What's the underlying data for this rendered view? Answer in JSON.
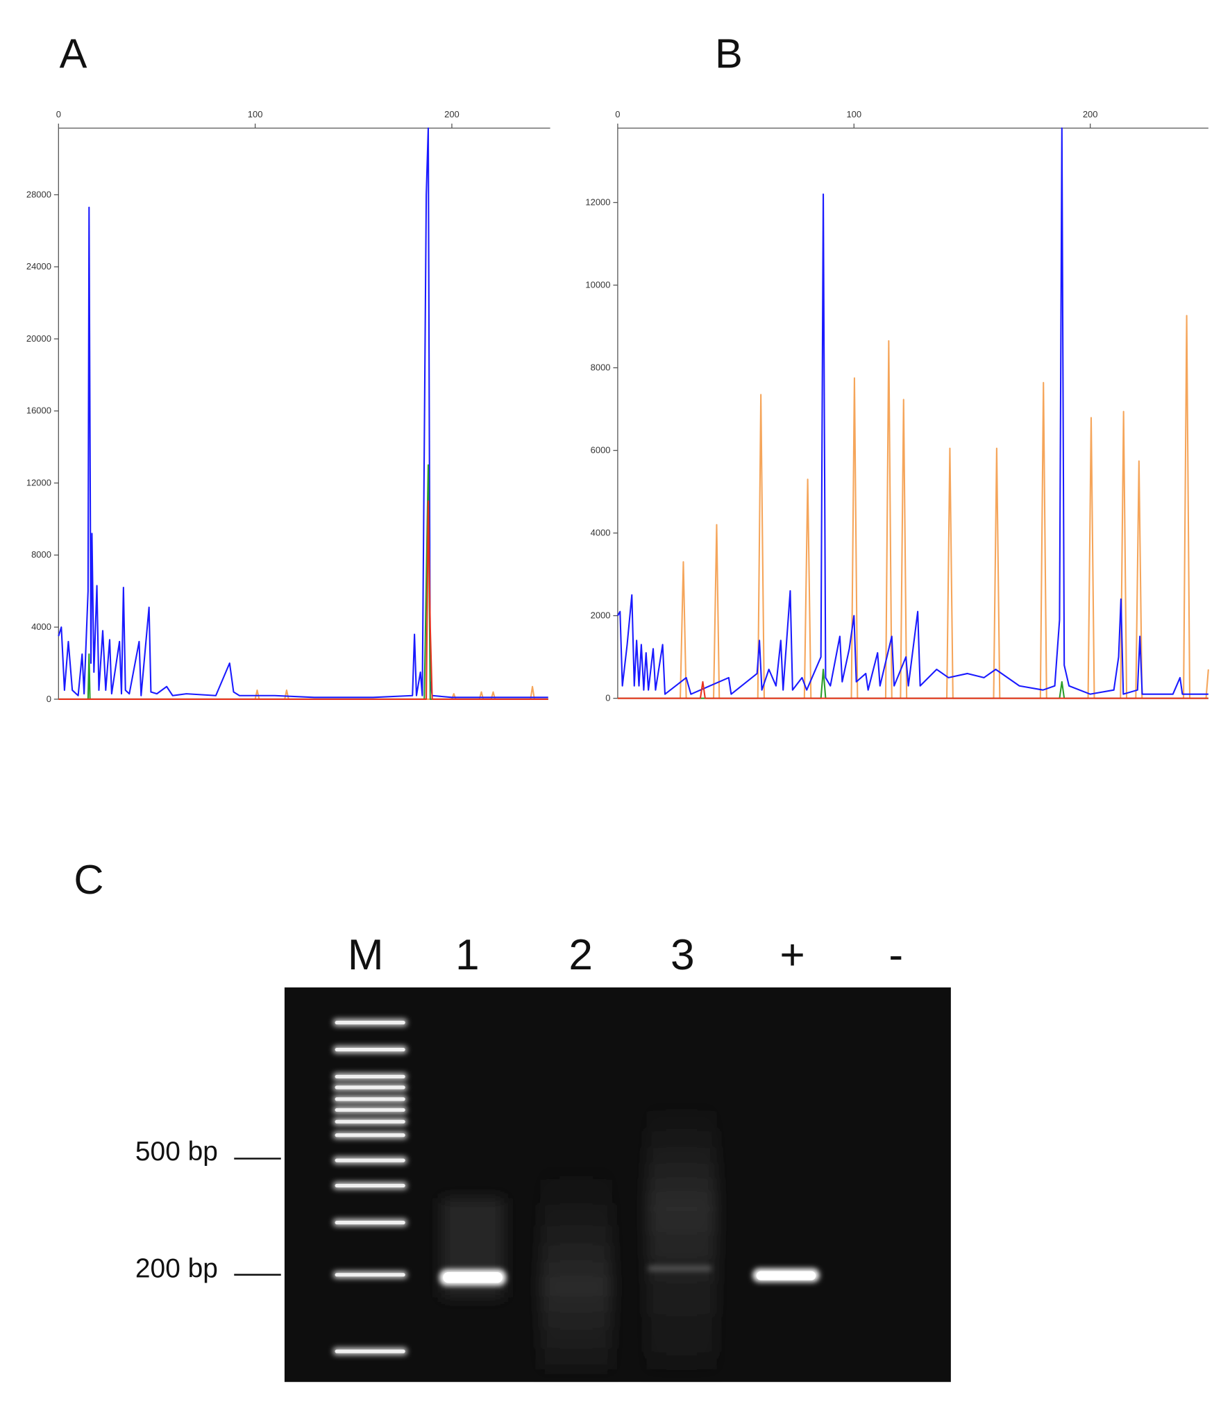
{
  "chart_data": [
    {
      "type": "line",
      "title": "A",
      "xlim": [
        0,
        250
      ],
      "xticks": [
        0,
        100,
        200
      ],
      "ylim": [
        0,
        31700
      ],
      "yticks": [
        0,
        4000,
        8000,
        12000,
        16000,
        20000,
        24000,
        28000
      ],
      "series": [
        {
          "color": "#f5a55a",
          "x": [
            0,
            100,
            101,
            102,
            115,
            116,
            117,
            200,
            201,
            202,
            214,
            215,
            216,
            220,
            221,
            222,
            240,
            241,
            242,
            249
          ],
          "values": [
            0,
            0,
            500,
            0,
            0,
            500,
            0,
            0,
            300,
            0,
            0,
            400,
            0,
            0,
            400,
            0,
            0,
            700,
            0,
            0
          ]
        },
        {
          "color": "#1a1aff",
          "x": [
            0,
            1.4,
            3,
            5,
            7,
            10,
            12,
            13,
            15,
            15.5,
            16.5,
            17,
            18,
            19.5,
            20.5,
            22.5,
            24,
            26,
            27,
            31,
            32,
            33,
            34,
            36,
            41,
            42,
            46,
            47,
            50,
            55,
            58,
            65,
            80,
            87,
            89,
            92,
            110,
            130,
            160,
            180,
            181,
            182,
            184,
            185,
            187,
            188,
            189,
            190,
            200,
            249
          ],
          "values": [
            3500,
            4000,
            500,
            3200,
            500,
            200,
            2500,
            300,
            6000,
            27300,
            2000,
            9200,
            1500,
            6300,
            500,
            3800,
            500,
            3300,
            300,
            3200,
            300,
            6200,
            500,
            300,
            3200,
            200,
            5100,
            400,
            300,
            700,
            200,
            300,
            200,
            2000,
            400,
            200,
            200,
            100,
            100,
            200,
            3600,
            200,
            1500,
            200,
            28000,
            31700,
            1000,
            200,
            100,
            100
          ]
        },
        {
          "color": "#2a9d2a",
          "x": [
            0,
            15,
            15.5,
            16,
            186,
            188,
            189,
            249
          ],
          "values": [
            0,
            0,
            2500,
            0,
            0,
            13000,
            0,
            0
          ]
        },
        {
          "color": "#e8321e",
          "x": [
            0,
            187,
            188,
            189,
            190,
            249
          ],
          "values": [
            0,
            0,
            11000,
            4000,
            0,
            0
          ]
        }
      ]
    },
    {
      "type": "line",
      "title": "B",
      "xlim": [
        0,
        250
      ],
      "xticks": [
        0,
        100,
        200
      ],
      "ylim": [
        0,
        13800
      ],
      "yticks": [
        0,
        2000,
        4000,
        6000,
        8000,
        10000,
        12000
      ],
      "series": [
        {
          "color": "#f5a55a",
          "x": [
            0,
            26.5,
            27.8,
            29,
            40.6,
            41.9,
            43,
            59.3,
            60.6,
            62,
            79,
            80.4,
            81.8,
            98.9,
            100.2,
            101.5,
            113.4,
            114.7,
            116,
            119.7,
            121,
            122.3,
            139.3,
            140.6,
            141.9,
            159.1,
            160.4,
            161.7,
            178.9,
            180.2,
            181.5,
            199.1,
            200.4,
            201.7,
            212.8,
            214.1,
            215.4,
            219.3,
            220.6,
            221.9,
            239.5,
            240.8,
            242.1,
            249,
            250
          ],
          "values": [
            0,
            0,
            3300,
            0,
            0,
            4200,
            0,
            0,
            7350,
            0,
            0,
            5300,
            0,
            0,
            7750,
            0,
            0,
            8650,
            0,
            0,
            7230,
            0,
            0,
            6050,
            0,
            0,
            6050,
            0,
            0,
            7640,
            0,
            0,
            6790,
            0,
            0,
            6940,
            0,
            0,
            5740,
            0,
            0,
            9260,
            0,
            0,
            700
          ]
        },
        {
          "color": "#1a1aff",
          "x": [
            0,
            1,
            2,
            4,
            6,
            7,
            8,
            9,
            10,
            11,
            12,
            13,
            15,
            16,
            19,
            20,
            29,
            31,
            47,
            48,
            59,
            60,
            61,
            64,
            67,
            69,
            70,
            73,
            74,
            78,
            80,
            86,
            87,
            88,
            90,
            94,
            95,
            98,
            100,
            101,
            105,
            106,
            110,
            111,
            116,
            117,
            122,
            123,
            127,
            128,
            135,
            140,
            148,
            155,
            160,
            170,
            180,
            185,
            187,
            188,
            189,
            191,
            200,
            210,
            212,
            213,
            214,
            220,
            221,
            222,
            235,
            238,
            239,
            250
          ],
          "values": [
            2000,
            2100,
            300,
            1300,
            2500,
            300,
            1400,
            300,
            1300,
            200,
            1100,
            200,
            1200,
            200,
            1300,
            100,
            500,
            100,
            500,
            100,
            600,
            1400,
            200,
            700,
            300,
            1400,
            200,
            2600,
            200,
            500,
            200,
            1000,
            12200,
            500,
            300,
            1500,
            400,
            1200,
            2000,
            400,
            600,
            200,
            1100,
            300,
            1500,
            300,
            1000,
            300,
            2100,
            300,
            700,
            500,
            600,
            500,
            700,
            300,
            200,
            300,
            1900,
            13800,
            800,
            300,
            100,
            200,
            1000,
            2400,
            100,
            200,
            1500,
            100,
            100,
            500,
            100,
            100
          ]
        },
        {
          "color": "#2a9d2a",
          "x": [
            0,
            86,
            87,
            88,
            187,
            188,
            189,
            250
          ],
          "values": [
            0,
            0,
            700,
            0,
            0,
            400,
            0,
            0
          ]
        },
        {
          "color": "#e8321e",
          "x": [
            0,
            35,
            36,
            37,
            250
          ],
          "values": [
            0,
            0,
            400,
            0,
            0
          ]
        }
      ]
    }
  ],
  "gel": {
    "label": "C",
    "lanes": [
      "M",
      "1",
      "2",
      "3",
      "+",
      "-"
    ],
    "markers": [
      "500 bp",
      "200 bp"
    ]
  }
}
